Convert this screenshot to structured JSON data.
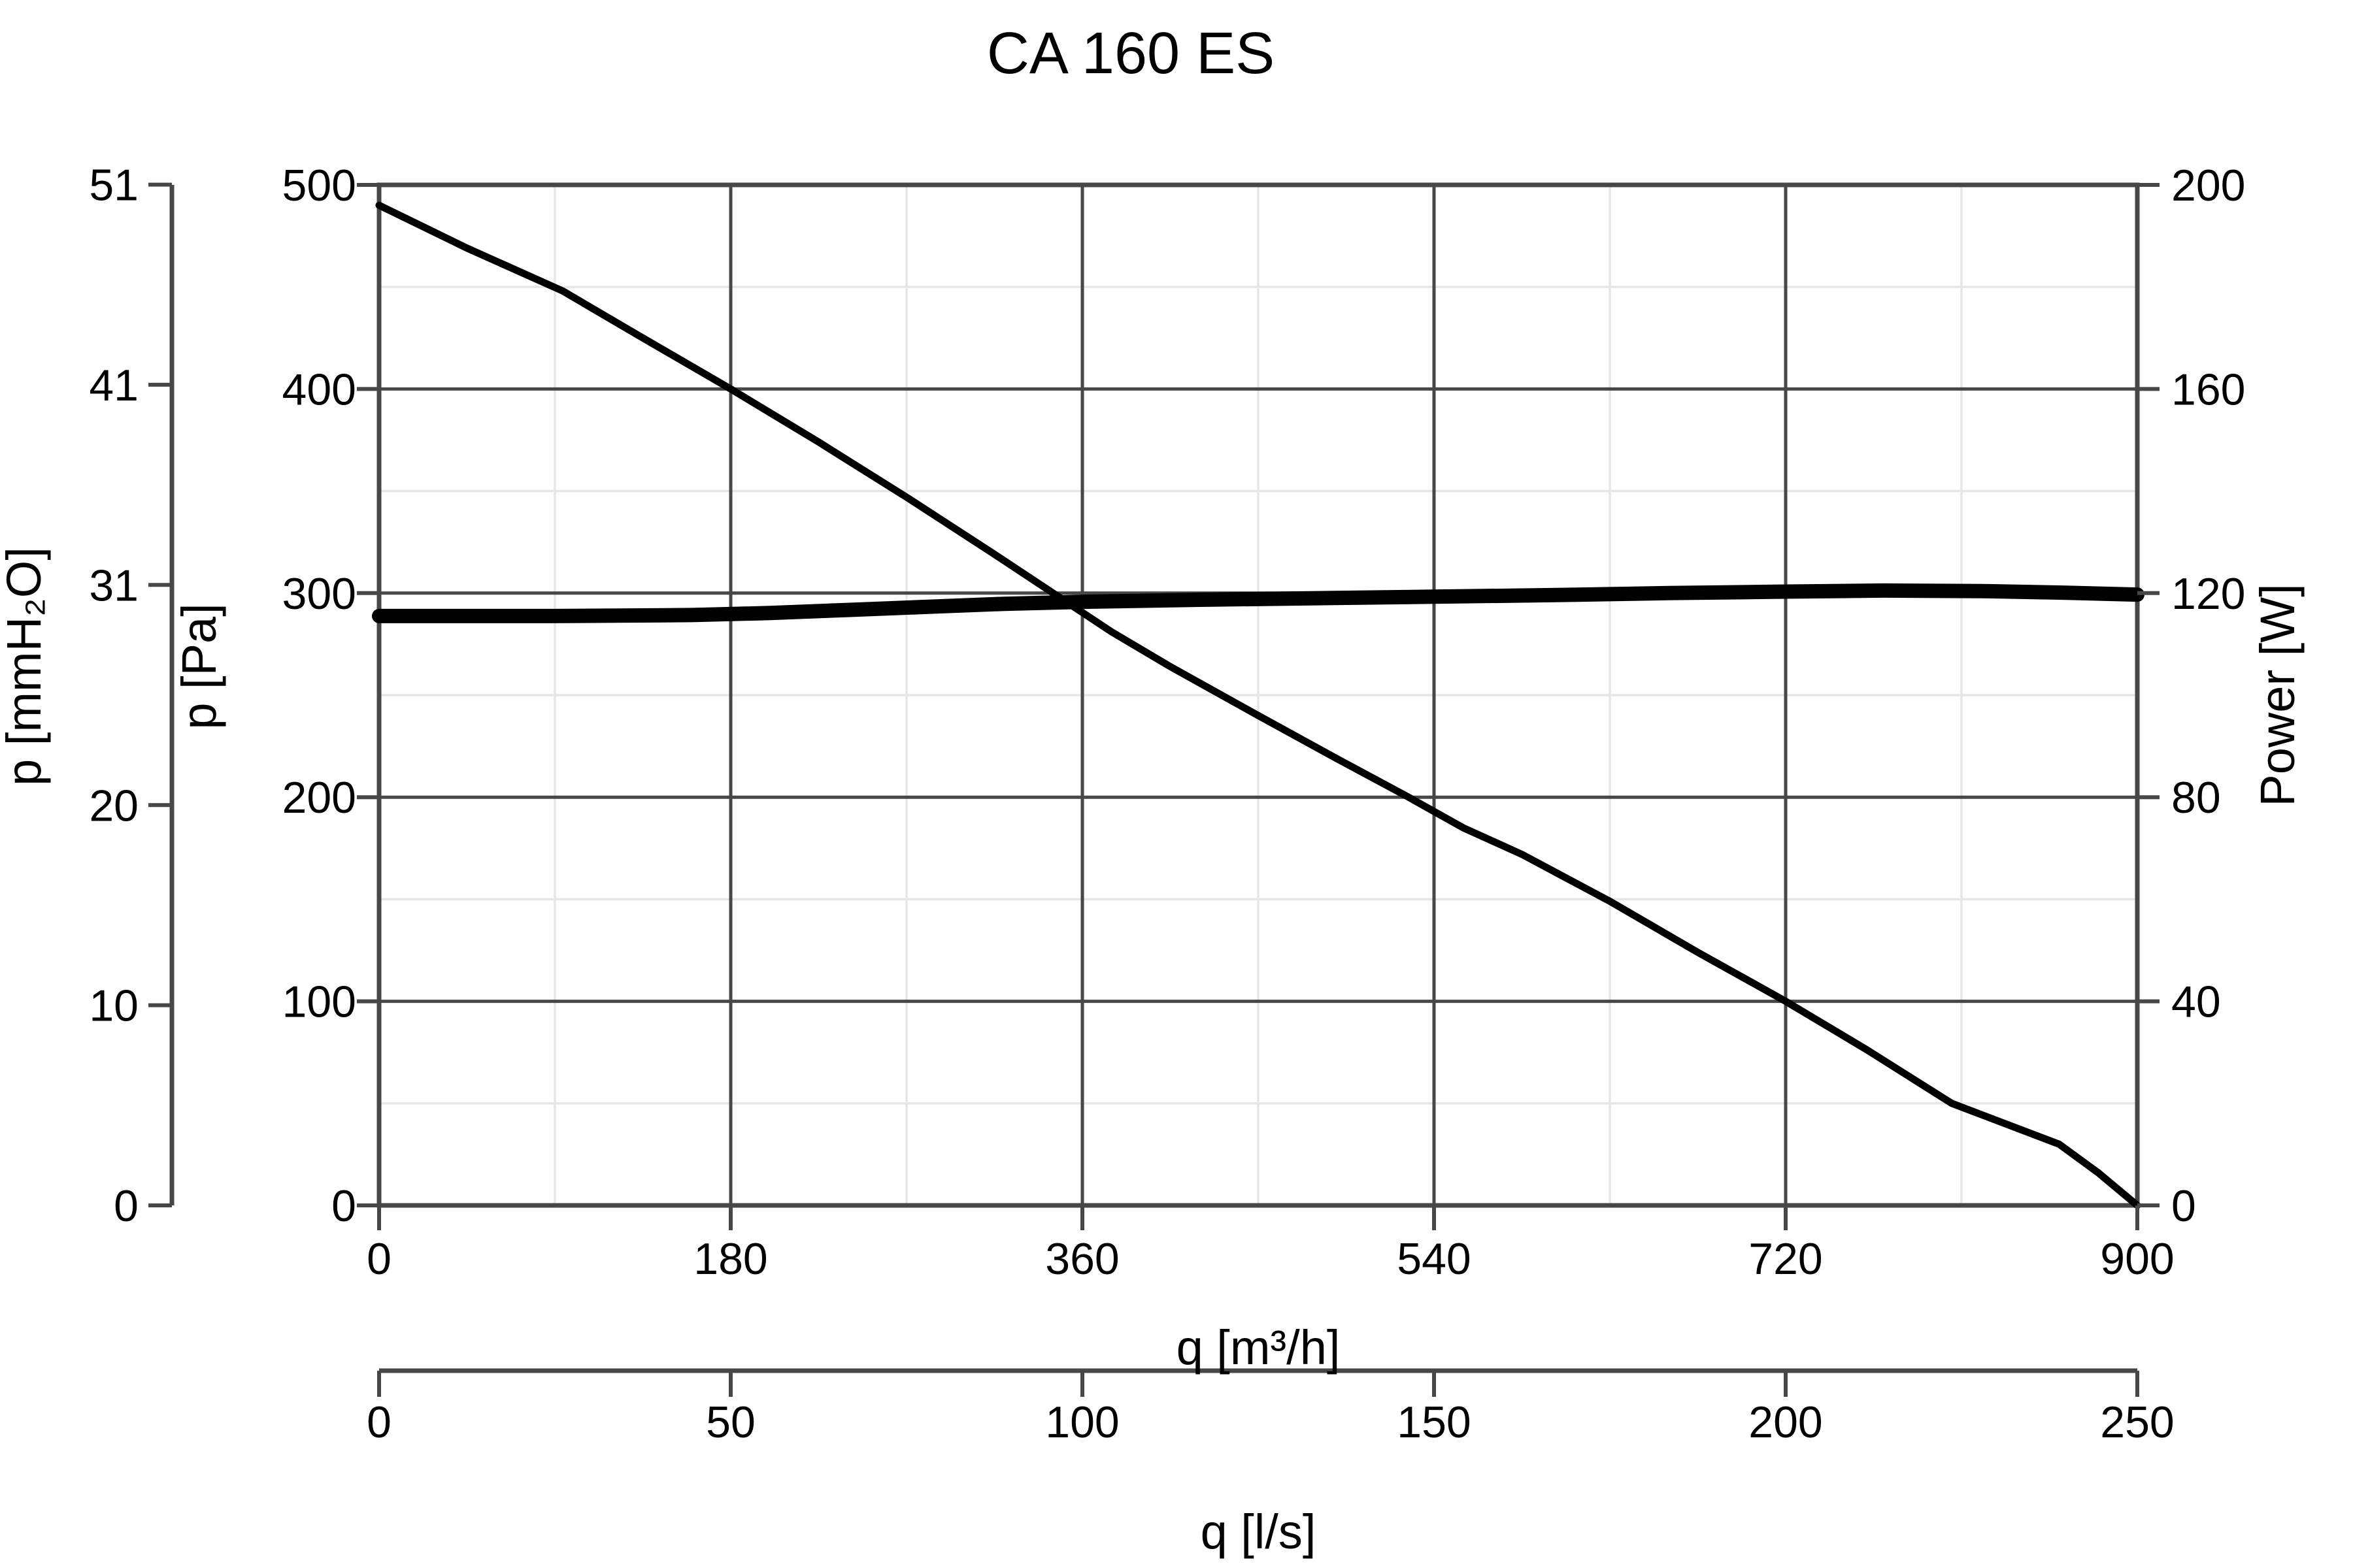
{
  "title": "CA 160 ES",
  "palette": {
    "background": "#ffffff",
    "frame": "#474747",
    "major_grid": "#474747",
    "minor_grid": "#e6e6e6",
    "tick": "#474747",
    "curve": "#000000",
    "text": "#000000"
  },
  "chart_data": {
    "type": "line",
    "title": "CA 160 ES",
    "legend": "none",
    "grid": "major+minor",
    "axes": {
      "x_primary": {
        "label": "q [m³/h]",
        "min": 0,
        "max": 900,
        "ticks": [
          0,
          180,
          360,
          540,
          720,
          900
        ],
        "minor_step": 90
      },
      "x_secondary": {
        "label": "q [l/s]",
        "min": 0,
        "max": 250,
        "ticks": [
          0,
          50,
          100,
          150,
          200,
          250
        ]
      },
      "y_pressure_pa": {
        "label": "p [Pa]",
        "min": 0,
        "max": 500,
        "ticks": [
          0,
          100,
          200,
          300,
          400,
          500
        ],
        "minor_step": 50
      },
      "y_pressure_mmh2o": {
        "label": "p [mmH₂O]",
        "ticks": [
          0,
          10,
          20,
          31,
          41,
          51
        ],
        "pa_per_unit": 9.80665
      },
      "y_power_w": {
        "label": "Power [W]",
        "min": 0,
        "max": 200,
        "ticks": [
          0,
          40,
          80,
          120,
          160,
          200
        ]
      }
    },
    "series": [
      {
        "name": "pressure",
        "y_axis": "y_pressure_pa",
        "units": "Pa vs m³/h",
        "stroke_width": 11,
        "points": [
          [
            0,
            490
          ],
          [
            45,
            469
          ],
          [
            94,
            448
          ],
          [
            135,
            425
          ],
          [
            180,
            400
          ],
          [
            225,
            374
          ],
          [
            270,
            347
          ],
          [
            315,
            319
          ],
          [
            345,
            300
          ],
          [
            375,
            281
          ],
          [
            405,
            264
          ],
          [
            450,
            240
          ],
          [
            490,
            219
          ],
          [
            527,
            200
          ],
          [
            555,
            185
          ],
          [
            585,
            172
          ],
          [
            630,
            149
          ],
          [
            675,
            124
          ],
          [
            720,
            100
          ],
          [
            762,
            76
          ],
          [
            805,
            50
          ],
          [
            860,
            30
          ],
          [
            880,
            16
          ],
          [
            900,
            0
          ]
        ]
      },
      {
        "name": "power",
        "y_axis": "y_power_w",
        "units": "W vs m³/h",
        "stroke_width": 22,
        "points": [
          [
            0,
            115.5
          ],
          [
            90,
            115.5
          ],
          [
            160,
            115.7
          ],
          [
            200,
            116.1
          ],
          [
            240,
            116.7
          ],
          [
            280,
            117.3
          ],
          [
            320,
            117.9
          ],
          [
            360,
            118.3
          ],
          [
            420,
            118.7
          ],
          [
            480,
            119.0
          ],
          [
            540,
            119.3
          ],
          [
            600,
            119.6
          ],
          [
            660,
            120.0
          ],
          [
            720,
            120.3
          ],
          [
            770,
            120.5
          ],
          [
            820,
            120.4
          ],
          [
            860,
            120.1
          ],
          [
            900,
            119.7
          ]
        ]
      }
    ]
  }
}
